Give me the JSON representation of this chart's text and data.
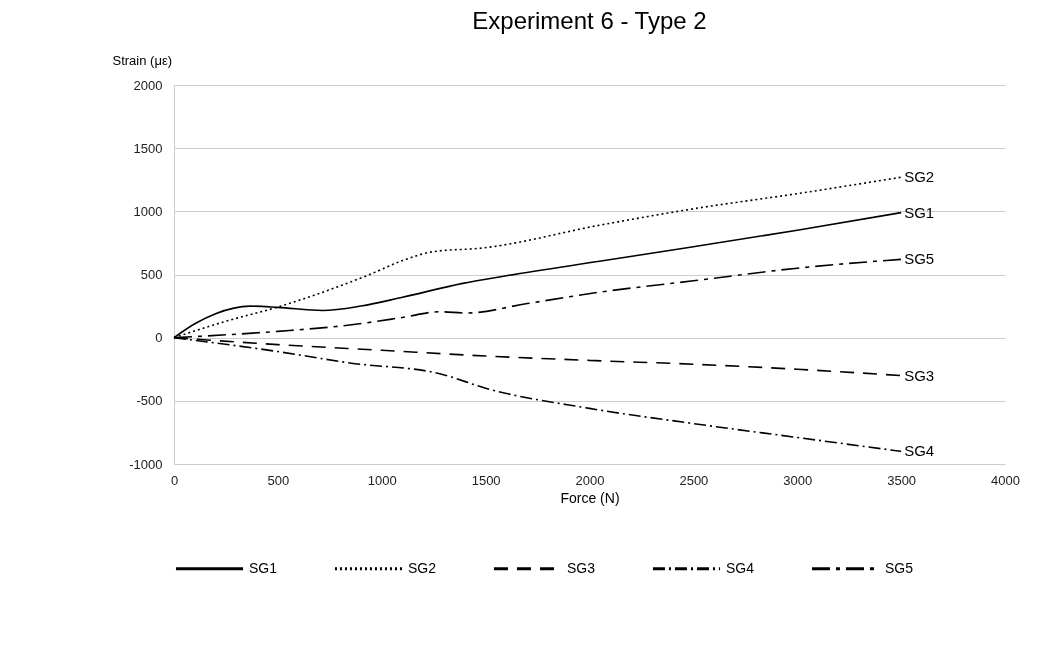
{
  "chart_data": {
    "type": "line",
    "title": "Experiment 6 - Type 2",
    "xlabel": "Force (N)",
    "ylabel": "Strain (με)",
    "xlim": [
      0,
      4000
    ],
    "xticks": [
      0,
      500,
      1000,
      1500,
      2000,
      2500,
      3000,
      3500,
      4000
    ],
    "ylim": [
      -1000,
      2000
    ],
    "yticks": [
      -1000,
      -500,
      0,
      500,
      1000,
      1500,
      2000
    ],
    "grid": "y",
    "legend": "bottom",
    "marker": "none",
    "series": [
      {
        "name": "SG1",
        "color": "#000000",
        "line_style": "solid",
        "x": [
          0,
          100,
          200,
          365,
          500,
          716,
          900,
          1100,
          1390,
          1600,
          2048,
          2500,
          3000,
          3500
        ],
        "values": [
          0,
          110,
          190,
          250,
          240,
          215,
          250,
          320,
          430,
          490,
          605,
          720,
          850,
          990
        ]
      },
      {
        "name": "SG2",
        "color": "#000000",
        "line_style": "dotted",
        "x": [
          0,
          250,
          495,
          750,
          942,
          1100,
          1245,
          1486,
          2048,
          2500,
          3000,
          3500
        ],
        "values": [
          0,
          130,
          240,
          380,
          500,
          610,
          680,
          710,
          890,
          1020,
          1140,
          1270
        ]
      },
      {
        "name": "SG3",
        "color": "#000000",
        "line_style": "dashed",
        "x": [
          0,
          500,
          1000,
          1500,
          2000,
          2500,
          3000,
          3500
        ],
        "values": [
          0,
          -55,
          -100,
          -145,
          -180,
          -210,
          -250,
          -300
        ]
      },
      {
        "name": "SG4",
        "color": "#000000",
        "line_style": "dashdot",
        "x": [
          0,
          500,
          846,
          1279,
          1500,
          2000,
          2500,
          3000,
          3500
        ],
        "values": [
          0,
          -110,
          -200,
          -285,
          -400,
          -560,
          -680,
          -790,
          -900
        ]
      },
      {
        "name": "SG5",
        "color": "#000000",
        "line_style": "longdashdot",
        "x": [
          0,
          500,
          846,
          1100,
          1279,
          1409,
          1700,
          2048,
          2500,
          3000,
          3500
        ],
        "values": [
          0,
          50,
          100,
          160,
          205,
          195,
          270,
          360,
          450,
          550,
          620
        ]
      }
    ]
  }
}
